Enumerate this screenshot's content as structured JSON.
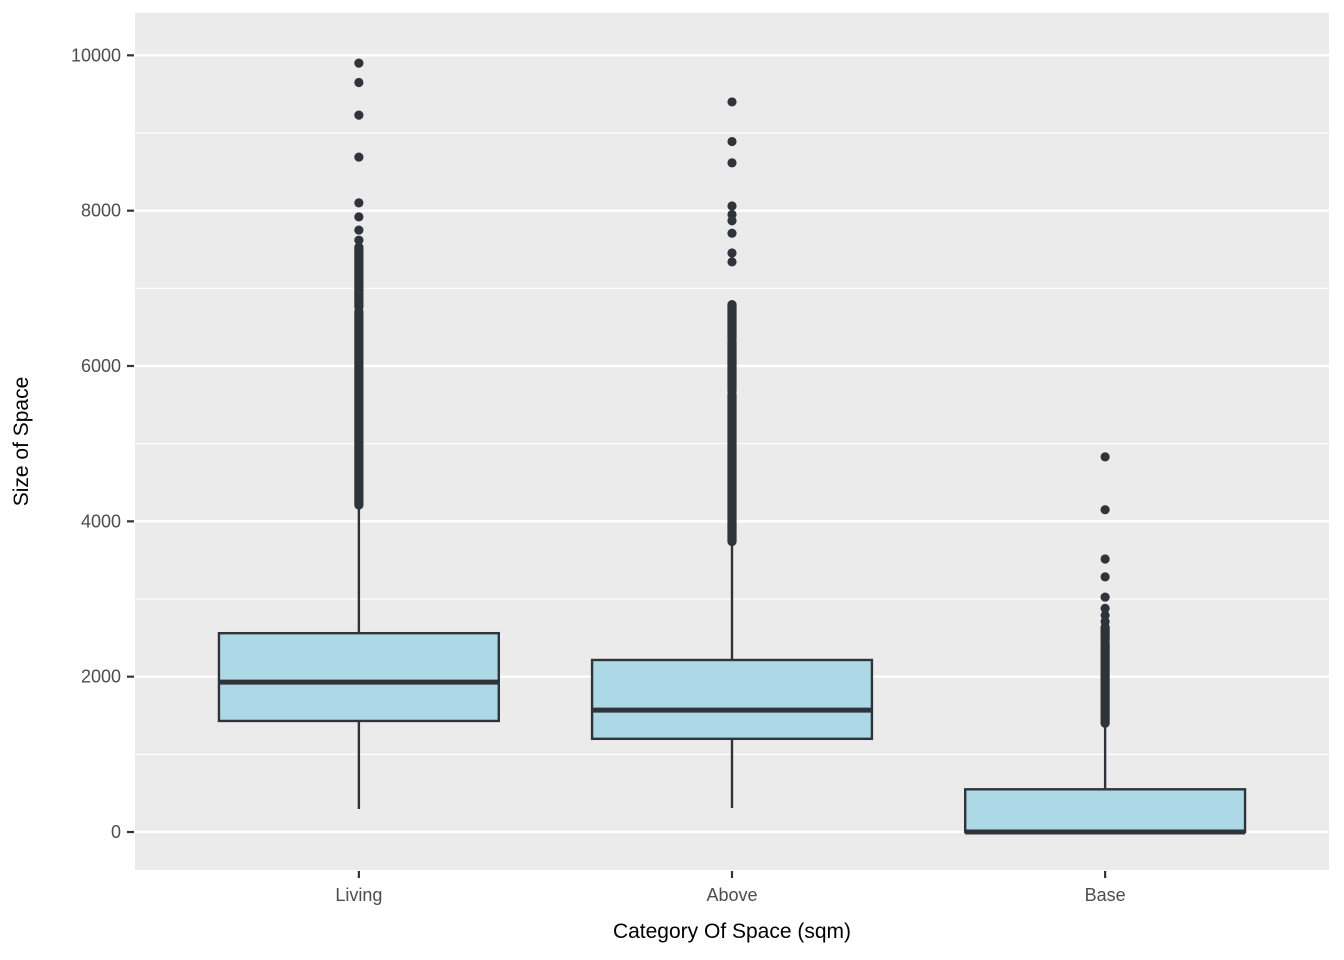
{
  "figure": {
    "background": "#FFFFFF",
    "panel_background": "#EBEBEB",
    "grid_color": "#FFFFFF",
    "box_fill": "#ADD8E6",
    "box_stroke": "#2F343A",
    "outlier_color": "#2F343A",
    "axis_tick_color": "#333333",
    "tick_label_color": "#4D4D4D",
    "axis_title_color": "#000000"
  },
  "chart_data": {
    "type": "boxplot",
    "title": "",
    "xlabel": "Category Of Space (sqm)",
    "ylabel": "Size of Space",
    "categories": [
      "Living",
      "Above",
      "Base"
    ],
    "y_major_ticks": [
      0,
      2000,
      4000,
      6000,
      8000,
      10000
    ],
    "y_minor_ticks": [
      1000,
      3000,
      5000,
      7000,
      9000
    ],
    "ylim": [
      -489,
      10545
    ],
    "x_units_domain": [
      0.4,
      3.6
    ],
    "box_width_units": 0.75,
    "grid": true,
    "legend": "none",
    "boxes": [
      {
        "category": "Living",
        "lower_whisker": 296,
        "q1": 1430,
        "median": 1930,
        "q3": 2560,
        "upper_whisker": 4210,
        "outliers": [
          7620,
          7750,
          7920,
          8100,
          8690,
          9230,
          9650,
          9900
        ],
        "outlier_dense_ranges": [
          [
            4210,
            6700
          ],
          [
            6760,
            7530
          ]
        ]
      },
      {
        "category": "Above",
        "lower_whisker": 309,
        "q1": 1200,
        "median": 1570,
        "q3": 2215,
        "upper_whisker": 3740,
        "outliers": [
          7340,
          7455,
          7710,
          7870,
          7950,
          8060,
          8615,
          8890,
          9400
        ],
        "outlier_dense_ranges": [
          [
            3740,
            5640
          ],
          [
            5680,
            6330
          ],
          [
            6360,
            6790
          ]
        ]
      },
      {
        "category": "Base",
        "lower_whisker": 0,
        "q1": 0,
        "median": 0,
        "q3": 550,
        "upper_whisker": 1400,
        "outliers": [
          2710,
          2790,
          2880,
          3025,
          3285,
          3515,
          4150,
          4830
        ],
        "outlier_dense_ranges": [
          [
            1400,
            2440
          ],
          [
            2470,
            2640
          ]
        ]
      }
    ]
  }
}
